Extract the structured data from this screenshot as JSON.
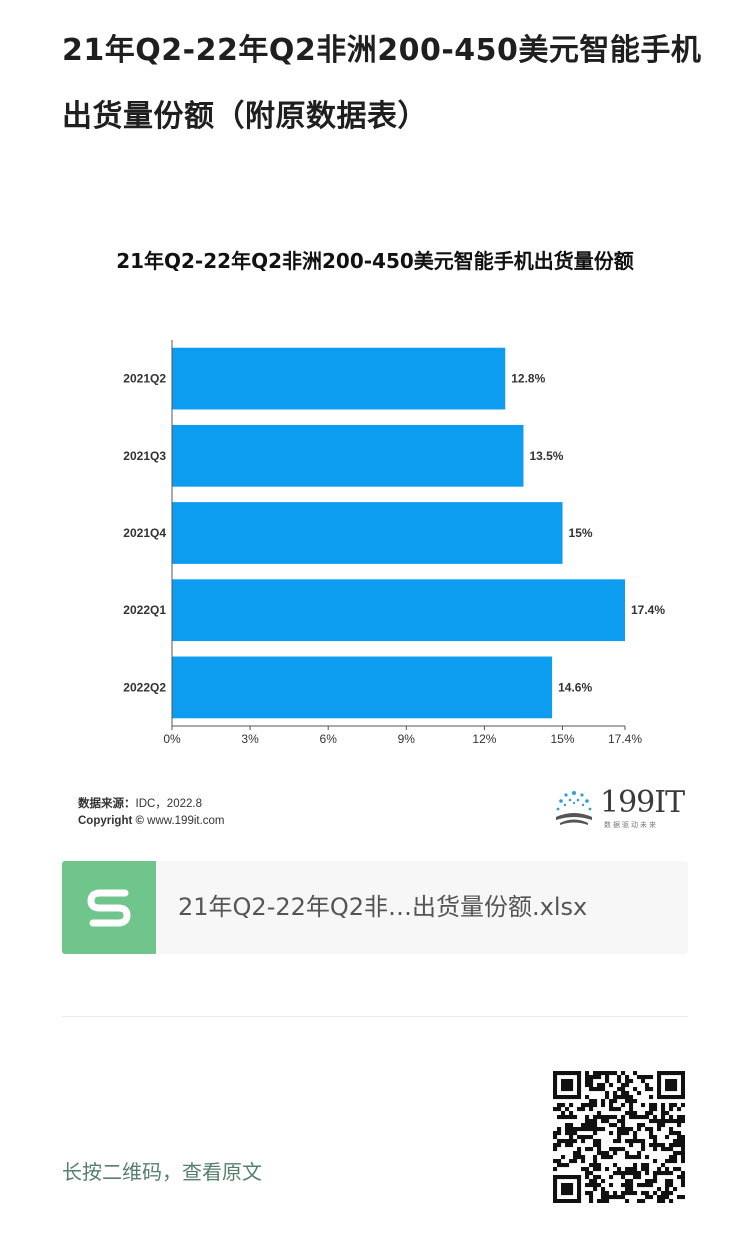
{
  "article": {
    "title": "21年Q2-22年Q2非洲200-450美元智能手机出货量份额（附原数据表）"
  },
  "chart_data": {
    "type": "bar",
    "orientation": "horizontal",
    "title": "21年Q2-22年Q2非洲200-450美元智能手机出货量份额",
    "categories": [
      "2021Q2",
      "2021Q3",
      "2021Q4",
      "2022Q1",
      "2022Q2"
    ],
    "values": [
      12.8,
      13.5,
      15,
      17.4,
      14.6
    ],
    "value_labels": [
      "12.8%",
      "13.5%",
      "15%",
      "17.4%",
      "14.6%"
    ],
    "x_ticks": [
      0,
      3,
      6,
      9,
      12,
      15,
      17.4
    ],
    "x_tick_labels": [
      "0%",
      "3%",
      "6%",
      "9%",
      "12%",
      "15%",
      "17.4%"
    ],
    "xlim": [
      0,
      17.4
    ],
    "xlabel": "",
    "ylabel": "",
    "grid": false,
    "bar_color": "#0c9cf0"
  },
  "source": {
    "label": "数据来源：",
    "text": "IDC，2022.8"
  },
  "copyright": {
    "label": "Copyright ©",
    "text": "www.199it.com"
  },
  "brand": {
    "name": "199IT",
    "tagline": "数据驱动未来"
  },
  "attachment": {
    "icon": "spreadsheet-s-icon",
    "file_name": "21年Q2-22年Q2非…出货量份额.xlsx",
    "accent_color": "#6fc58b"
  },
  "qr": {
    "hint": "长按二维码，查看原文",
    "icon": "qr-code-icon"
  }
}
